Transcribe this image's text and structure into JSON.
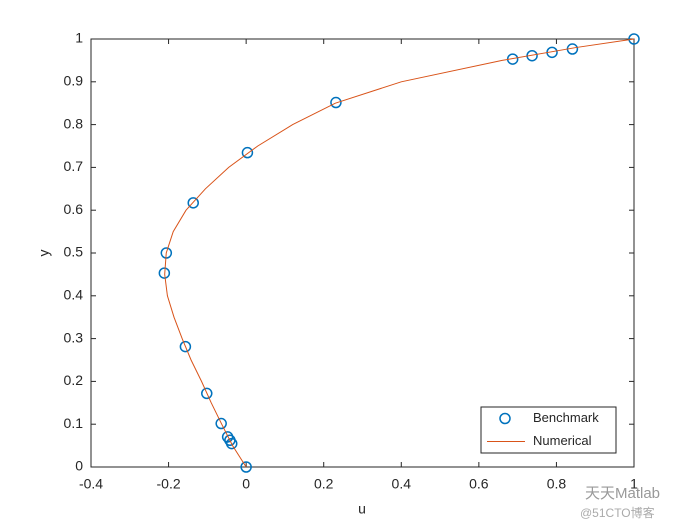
{
  "chart_data": {
    "type": "line",
    "xlabel": "u",
    "ylabel": "y",
    "xlim": [
      -0.4,
      1
    ],
    "xticks": [
      -0.4,
      -0.2,
      0,
      0.2,
      0.4,
      0.6,
      0.8,
      1
    ],
    "ylim": [
      0,
      1
    ],
    "yticks": [
      0,
      0.1,
      0.2,
      0.3,
      0.4,
      0.5,
      0.6,
      0.7,
      0.8,
      0.9,
      1
    ],
    "legend": "southeast",
    "series": [
      {
        "name": "Benchmark",
        "type": "scatter",
        "marker": "circle",
        "color": "#0072BD",
        "x": [
          1,
          0.84123,
          0.78871,
          0.73722,
          0.68717,
          0.23151,
          0.00332,
          -0.13641,
          -0.20581,
          -0.2109,
          -0.15662,
          -0.1015,
          -0.06434,
          -0.04775,
          -0.04192,
          -0.03717,
          0
        ],
        "values": [
          1,
          0.9766,
          0.9688,
          0.9609,
          0.9531,
          0.8516,
          0.7344,
          0.6172,
          0.5,
          0.4531,
          0.2813,
          0.1719,
          0.1016,
          0.0703,
          0.0625,
          0.0547,
          0
        ]
      },
      {
        "name": "Numerical",
        "type": "line",
        "color": "#D95319",
        "x": [
          0,
          -0.035,
          -0.063,
          -0.09,
          -0.115,
          -0.142,
          -0.165,
          -0.186,
          -0.203,
          -0.21,
          -0.206,
          -0.188,
          -0.155,
          -0.105,
          -0.045,
          0.03,
          0.12,
          0.23,
          0.4,
          0.66,
          0.85,
          1
        ],
        "values": [
          0,
          0.05,
          0.1,
          0.15,
          0.2,
          0.25,
          0.3,
          0.35,
          0.4,
          0.45,
          0.5,
          0.55,
          0.6,
          0.65,
          0.7,
          0.75,
          0.8,
          0.85,
          0.9,
          0.95,
          0.98,
          1
        ]
      }
    ],
    "watermark": [
      "天天Matlab",
      "@51CTO博客"
    ]
  }
}
